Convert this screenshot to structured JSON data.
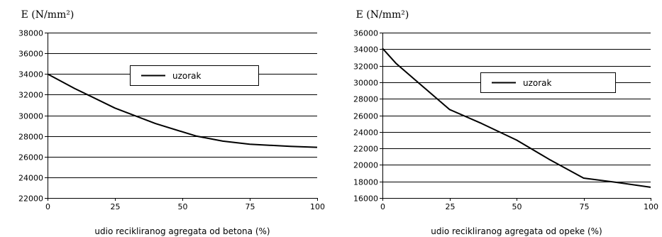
{
  "chart_data": [
    {
      "type": "line",
      "ylabel": "E (N/mm²)",
      "xlabel": "udio recikliranog agregata od betona (%)",
      "xlim": [
        0,
        100
      ],
      "ylim": [
        22000,
        38000
      ],
      "xticks": [
        0,
        25,
        50,
        75,
        100
      ],
      "xtick_labels": [
        "0",
        "25",
        "50",
        "75",
        "100"
      ],
      "yticks": [
        22000,
        24000,
        26000,
        28000,
        30000,
        32000,
        34000,
        36000,
        38000
      ],
      "ytick_labels": [
        "22000",
        "24000",
        "26000",
        "28000",
        "30000",
        "32000",
        "34000",
        "36000",
        "38000"
      ],
      "grid": "horizontal",
      "legend_position": "upper-center",
      "series": [
        {
          "name": "uzorak",
          "color": "#000000",
          "x": [
            0,
            10,
            25,
            40,
            55,
            65,
            75,
            90,
            100
          ],
          "y": [
            34000,
            32600,
            30700,
            29200,
            28000,
            27500,
            27200,
            27000,
            26900
          ]
        }
      ]
    },
    {
      "type": "line",
      "ylabel": "E (N/mm²)",
      "xlabel": "udio recikliranog agregata od opeke (%)",
      "xlim": [
        0,
        100
      ],
      "ylim": [
        16000,
        36000
      ],
      "xticks": [
        0,
        25,
        50,
        75,
        100
      ],
      "xtick_labels": [
        "0",
        "25",
        "50",
        "75",
        "100"
      ],
      "yticks": [
        16000,
        18000,
        20000,
        22000,
        24000,
        26000,
        28000,
        30000,
        32000,
        34000,
        36000
      ],
      "ytick_labels": [
        "16000",
        "18000",
        "20000",
        "22000",
        "24000",
        "26000",
        "28000",
        "30000",
        "32000",
        "34000",
        "36000"
      ],
      "grid": "horizontal",
      "legend_position": "upper-center",
      "series": [
        {
          "name": "uzorak",
          "color": "#000000",
          "x": [
            0,
            5,
            15,
            25,
            37,
            50,
            62,
            75,
            87,
            100
          ],
          "y": [
            34100,
            32300,
            29500,
            26700,
            25000,
            23000,
            20700,
            18400,
            17900,
            17300
          ]
        }
      ]
    }
  ]
}
